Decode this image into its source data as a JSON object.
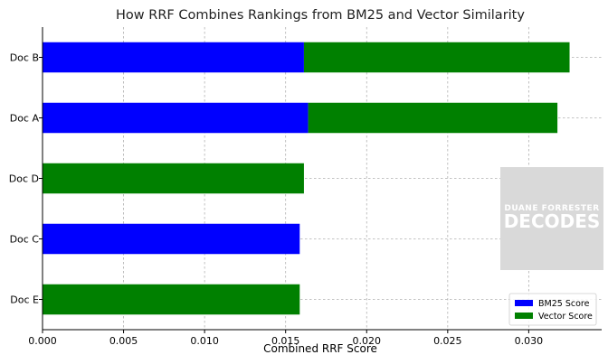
{
  "chart_data": {
    "type": "bar",
    "orientation": "horizontal",
    "stacked": true,
    "title": "How RRF Combines Rankings from BM25 and Vector Similarity",
    "xlabel": "Combined RRF Score",
    "ylabel": "",
    "categories": [
      "Doc B",
      "Doc A",
      "Doc D",
      "Doc C",
      "Doc E"
    ],
    "series": [
      {
        "name": "BM25 Score",
        "color": "#0000ff",
        "values": [
          0.01613,
          0.01639,
          0,
          0.01587,
          0
        ]
      },
      {
        "name": "Vector Score",
        "color": "#008000",
        "values": [
          0.01639,
          0.01538,
          0.01613,
          0,
          0.01587
        ]
      }
    ],
    "xlim": [
      0,
      0.0345
    ],
    "xticks": [
      0.0,
      0.005,
      0.01,
      0.015,
      0.02,
      0.025,
      0.03
    ],
    "xtick_labels": [
      "0.000",
      "0.005",
      "0.010",
      "0.015",
      "0.020",
      "0.025",
      "0.030"
    ],
    "grid": true,
    "legend_position": "lower-right"
  },
  "watermark": {
    "line1": "DUANE FORRESTER",
    "line2": "DECODES"
  }
}
